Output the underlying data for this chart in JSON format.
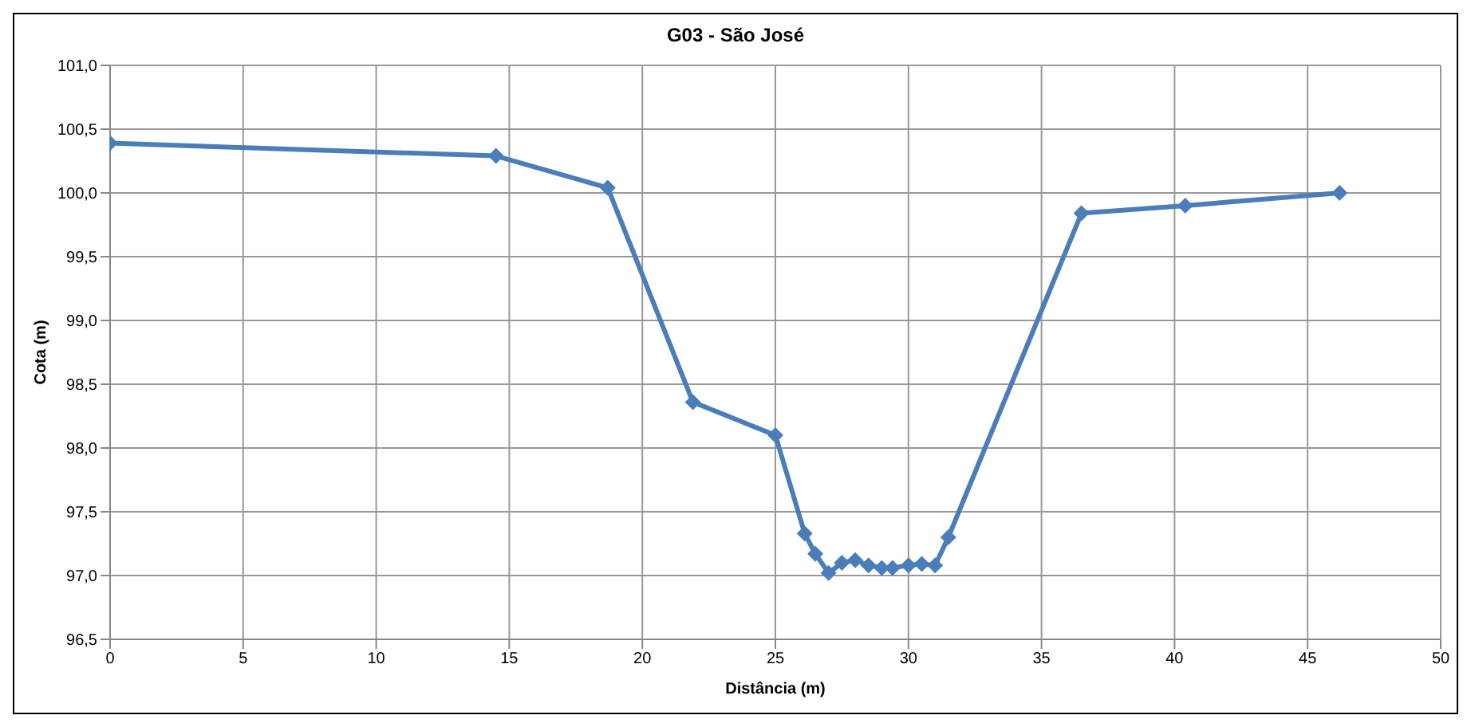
{
  "chart_data": {
    "type": "line",
    "title": "G03 - São José",
    "xlabel": "Distância (m)",
    "ylabel": "Cota (m)",
    "x": [
      0,
      14.5,
      18.7,
      21.9,
      25.0,
      26.1,
      26.5,
      27.0,
      27.5,
      28.0,
      28.5,
      29.0,
      29.4,
      30.0,
      30.5,
      31.0,
      31.5,
      36.5,
      40.4,
      46.2
    ],
    "series": [
      {
        "color": "#4a7ebb",
        "values": [
          100.39,
          100.29,
          100.04,
          98.36,
          98.1,
          97.33,
          97.17,
          97.02,
          97.1,
          97.12,
          97.08,
          97.06,
          97.06,
          97.08,
          97.09,
          97.08,
          97.3,
          99.84,
          99.9,
          100.0
        ]
      }
    ],
    "xlim": [
      0,
      50
    ],
    "xticks": [
      0,
      5,
      10,
      15,
      20,
      25,
      30,
      35,
      40,
      45,
      50
    ],
    "ylim": [
      96.5,
      101
    ],
    "yticks": [
      {
        "value": 96.5,
        "label": "96,5"
      },
      {
        "value": 97,
        "label": "97,0"
      },
      {
        "value": 97.5,
        "label": "97,5"
      },
      {
        "value": 98,
        "label": "98,0"
      },
      {
        "value": 98.5,
        "label": "98,5"
      },
      {
        "value": 99,
        "label": "99,0"
      },
      {
        "value": 99.5,
        "label": "99,5"
      },
      {
        "value": 100,
        "label": "100,0"
      },
      {
        "value": 100.5,
        "label": "100,5"
      },
      {
        "value": 101,
        "label": "101,0"
      }
    ],
    "grid": true,
    "legend": false,
    "marker": "diamond",
    "line_style": "solid"
  }
}
